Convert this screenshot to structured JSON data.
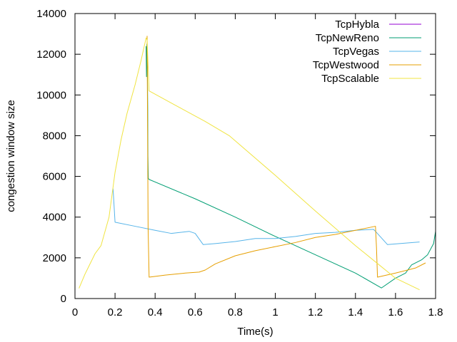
{
  "chart_data": {
    "type": "line",
    "xlabel": "Time(s)",
    "ylabel": "congestion window size",
    "xlim": [
      0,
      1.8
    ],
    "ylim": [
      0,
      14000
    ],
    "xticks": [
      0,
      0.2,
      0.4,
      0.6,
      0.8,
      1,
      1.2,
      1.4,
      1.6,
      1.8
    ],
    "xtick_labels": [
      "0",
      "0.2",
      "0.4",
      "0.6",
      "0.8",
      "1",
      "1.2",
      "1.4",
      "1.6",
      "1.8"
    ],
    "yticks": [
      0,
      2000,
      4000,
      6000,
      8000,
      10000,
      12000,
      14000
    ],
    "ytick_labels": [
      "0",
      "2000",
      "4000",
      "6000",
      "8000",
      "10000",
      "12000",
      "14000"
    ],
    "grid": false,
    "legend_position": "top-right",
    "series": [
      {
        "name": "TcpHybla",
        "color": "#9400d3",
        "points": []
      },
      {
        "name": "TcpNewReno",
        "color": "#009e73",
        "points": [
          [
            0.355,
            12400
          ],
          [
            0.357,
            10900
          ],
          [
            0.359,
            12500
          ],
          [
            0.361,
            11500
          ],
          [
            0.363,
            9400
          ],
          [
            0.364,
            7000
          ],
          [
            0.366,
            5900
          ],
          [
            0.37,
            5850
          ],
          [
            0.6,
            4900
          ],
          [
            0.8,
            4000
          ],
          [
            1.0,
            3050
          ],
          [
            1.2,
            2150
          ],
          [
            1.4,
            1250
          ],
          [
            1.53,
            520
          ],
          [
            1.6,
            1000
          ],
          [
            1.65,
            1250
          ],
          [
            1.68,
            1650
          ],
          [
            1.73,
            1900
          ],
          [
            1.76,
            2150
          ],
          [
            1.79,
            2700
          ],
          [
            1.8,
            3300
          ]
        ]
      },
      {
        "name": "TcpVegas",
        "color": "#56b4e9",
        "points": [
          [
            0.19,
            5400
          ],
          [
            0.2,
            3750
          ],
          [
            0.3,
            3550
          ],
          [
            0.4,
            3350
          ],
          [
            0.48,
            3200
          ],
          [
            0.57,
            3300
          ],
          [
            0.6,
            3200
          ],
          [
            0.64,
            2650
          ],
          [
            0.7,
            2700
          ],
          [
            0.8,
            2800
          ],
          [
            0.9,
            2950
          ],
          [
            1.0,
            2950
          ],
          [
            1.1,
            3050
          ],
          [
            1.2,
            3200
          ],
          [
            1.3,
            3250
          ],
          [
            1.4,
            3350
          ],
          [
            1.49,
            3400
          ],
          [
            1.5,
            3300
          ],
          [
            1.56,
            2650
          ],
          [
            1.62,
            2700
          ],
          [
            1.72,
            2780
          ]
        ]
      },
      {
        "name": "TcpWestwood",
        "color": "#e69f00",
        "points": [
          [
            0.36,
            12900
          ],
          [
            0.365,
            3500
          ],
          [
            0.37,
            1050
          ],
          [
            0.45,
            1150
          ],
          [
            0.55,
            1250
          ],
          [
            0.62,
            1300
          ],
          [
            0.65,
            1400
          ],
          [
            0.7,
            1700
          ],
          [
            0.8,
            2100
          ],
          [
            0.9,
            2350
          ],
          [
            1.0,
            2550
          ],
          [
            1.1,
            2750
          ],
          [
            1.2,
            3000
          ],
          [
            1.3,
            3150
          ],
          [
            1.4,
            3350
          ],
          [
            1.5,
            3550
          ],
          [
            1.505,
            2500
          ],
          [
            1.51,
            1050
          ],
          [
            1.6,
            1250
          ],
          [
            1.7,
            1500
          ],
          [
            1.75,
            1750
          ]
        ]
      },
      {
        "name": "TcpScalable",
        "color": "#f0e442",
        "points": [
          [
            0.02,
            500
          ],
          [
            0.05,
            1200
          ],
          [
            0.1,
            2200
          ],
          [
            0.13,
            2600
          ],
          [
            0.17,
            4000
          ],
          [
            0.2,
            6200
          ],
          [
            0.23,
            7800
          ],
          [
            0.26,
            9100
          ],
          [
            0.3,
            10500
          ],
          [
            0.33,
            11700
          ],
          [
            0.355,
            12800
          ],
          [
            0.36,
            12700
          ],
          [
            0.37,
            10200
          ],
          [
            0.5,
            9500
          ],
          [
            0.65,
            8700
          ],
          [
            0.77,
            8000
          ],
          [
            1.0,
            6050
          ],
          [
            1.2,
            4300
          ],
          [
            1.4,
            2600
          ],
          [
            1.5,
            1800
          ],
          [
            1.6,
            1000
          ],
          [
            1.72,
            430
          ]
        ]
      }
    ]
  }
}
